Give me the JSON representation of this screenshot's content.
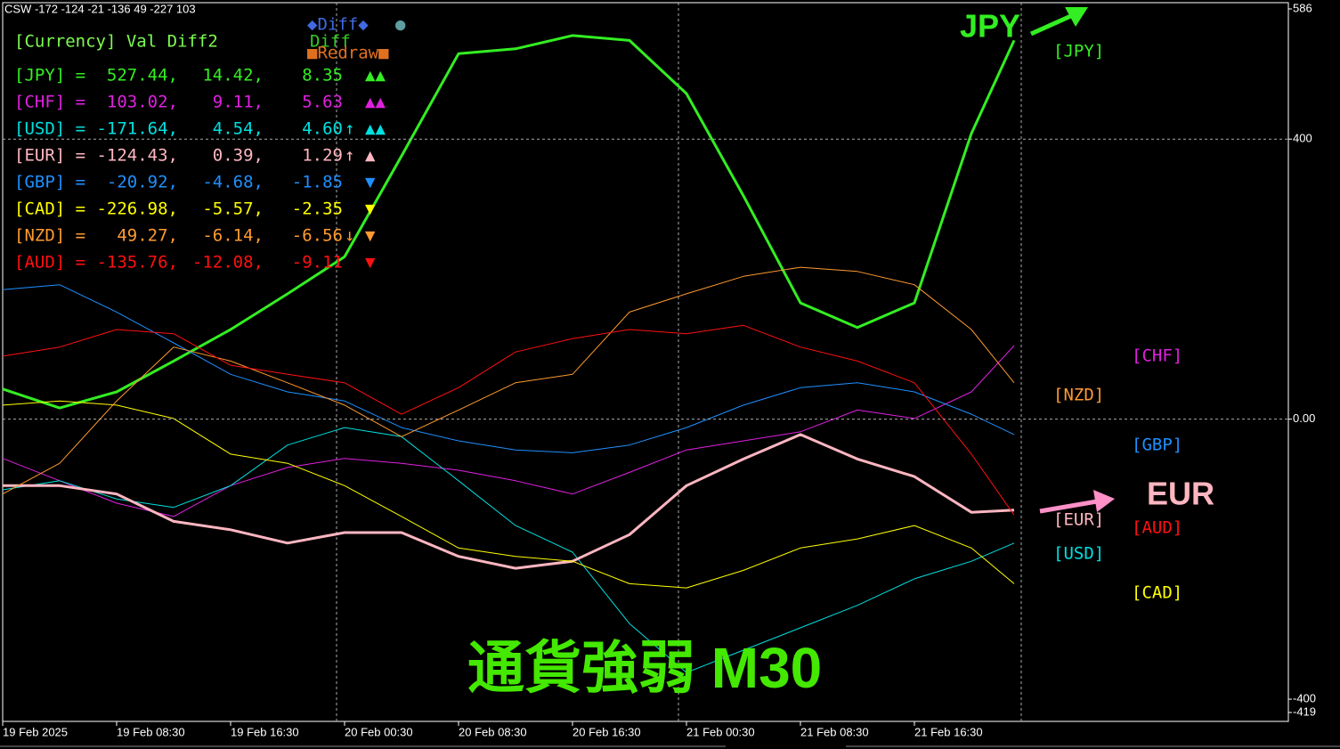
{
  "chart_data": {
    "type": "line",
    "title": "CSW -172 -124 -21 -136 49 -227 103",
    "big_title": "通貨強弱 M30",
    "annotations": [
      "JPY",
      "EUR"
    ],
    "x": [
      0,
      4,
      8,
      12,
      16,
      20,
      24,
      28,
      32,
      36,
      40,
      44,
      48,
      52,
      56,
      60,
      64,
      68,
      71
    ],
    "xlim": [
      0,
      90.25
    ],
    "xticks": [
      {
        "value": 0,
        "label": "19 Feb 2025"
      },
      {
        "value": 8,
        "label": "19 Feb 08:30"
      },
      {
        "value": 16,
        "label": "19 Feb 16:30"
      },
      {
        "value": 24,
        "label": "20 Feb 00:30"
      },
      {
        "value": 32,
        "label": "20 Feb 08:30"
      },
      {
        "value": 40,
        "label": "20 Feb 16:30"
      },
      {
        "value": 48,
        "label": "21 Feb 00:30"
      },
      {
        "value": 56,
        "label": "21 Feb 08:30"
      },
      {
        "value": 64,
        "label": "21 Feb 16:30"
      }
    ],
    "ylim": [
      -419,
      586
    ],
    "yticks": [
      586,
      400,
      {
        "value": 0,
        "label": "0.00"
      },
      -400,
      -419
    ],
    "grid_yticks": [
      1,
      2
    ],
    "series": [
      {
        "name": "JPY",
        "label": "[JPY]",
        "color": "#33ee22",
        "values": [
          43,
          16,
          39,
          83,
          128,
          179,
          232,
          376,
          522,
          529,
          548,
          541,
          465,
          319,
          166,
          131,
          166,
          408,
          541
        ]
      },
      {
        "name": "CHF",
        "label": "[CHF]",
        "color": "#e020e0",
        "values": [
          -56,
          -88,
          -120,
          -139,
          -95,
          -69,
          -56,
          -63,
          -73,
          -88,
          -107,
          -76,
          -44,
          -31,
          -18,
          13,
          1,
          39,
          105
        ]
      },
      {
        "name": "USD",
        "label": "[USD]",
        "color": "#00e0e0",
        "values": [
          -101,
          -88,
          -114,
          -126,
          -95,
          -37,
          -12,
          -25,
          -88,
          -152,
          -190,
          -292,
          -362,
          -330,
          -298,
          -266,
          -228,
          -203,
          -177
        ]
      },
      {
        "name": "EUR",
        "label": "[EUR]",
        "color": "#ffb6c1",
        "values": [
          -95,
          -95,
          -107,
          -146,
          -158,
          -177,
          -162,
          -162,
          -196,
          -213,
          -203,
          -165,
          -95,
          -57,
          -22,
          -57,
          -82,
          -133,
          -130
        ]
      },
      {
        "name": "GBP",
        "label": "[GBP]",
        "color": "#1e90ff",
        "values": [
          185,
          192,
          153,
          109,
          64,
          39,
          26,
          -12,
          -31,
          -44,
          -48,
          -37,
          -12,
          20,
          45,
          52,
          39,
          7,
          -22
        ]
      },
      {
        "name": "CAD",
        "label": "[CAD]",
        "color": "#ffff00",
        "values": [
          20,
          26,
          20,
          1,
          -50,
          -63,
          -95,
          -139,
          -184,
          -196,
          -203,
          -235,
          -241,
          -216,
          -184,
          -171,
          -152,
          -184,
          -235
        ]
      },
      {
        "name": "NZD",
        "label": "[NZD]",
        "color": "#ff9a30",
        "values": [
          -107,
          -63,
          26,
          103,
          83,
          52,
          20,
          -25,
          13,
          52,
          64,
          153,
          179,
          204,
          217,
          211,
          192,
          128,
          52
        ]
      },
      {
        "name": "AUD",
        "label": "[AUD]",
        "color": "#ff1010",
        "values": [
          90,
          103,
          128,
          122,
          77,
          64,
          52,
          7,
          45,
          96,
          115,
          128,
          122,
          134,
          103,
          83,
          52,
          -50,
          -137
        ]
      }
    ]
  },
  "panel": {
    "header": "[Currency]  Val    Diff2",
    "buttons": {
      "diff_toggle": "◆Diff◆",
      "dot": "●",
      "diff": "Diff",
      "redraw": "■Redraw■"
    },
    "rows": [
      {
        "label": "[JPY] =",
        "val": "527.44,",
        "diff2": "14.42,",
        "diff": "8.35",
        "signal": "▲▲"
      },
      {
        "label": "[CHF] =",
        "val": "103.02,",
        "diff2": "9.11,",
        "diff": "5.63",
        "signal": "▲▲"
      },
      {
        "label": "[USD] =",
        "val": "-171.64,",
        "diff2": "4.54,",
        "diff": "4.60",
        "flag": "↑",
        "signal": "▲▲"
      },
      {
        "label": "[EUR] =",
        "val": "-124.43,",
        "diff2": "0.39,",
        "diff": "1.29",
        "flag": "↑",
        "signal": "▲"
      },
      {
        "label": "[GBP] =",
        "val": "-20.92,",
        "diff2": "-4.68,",
        "diff": "-1.85",
        "signal": "▼"
      },
      {
        "label": "[CAD] =",
        "val": "-226.98,",
        "diff2": "-5.57,",
        "diff": "-2.35",
        "signal": "▼"
      },
      {
        "label": "[NZD] =",
        "val": "49.27,",
        "diff2": "-6.14,",
        "diff": "-6.56",
        "flag": "↓",
        "signal": "▼"
      },
      {
        "label": "[AUD] =",
        "val": "-135.76,",
        "diff2": "-12.08,",
        "diff": "-9.11",
        "signal": "▼"
      }
    ]
  }
}
